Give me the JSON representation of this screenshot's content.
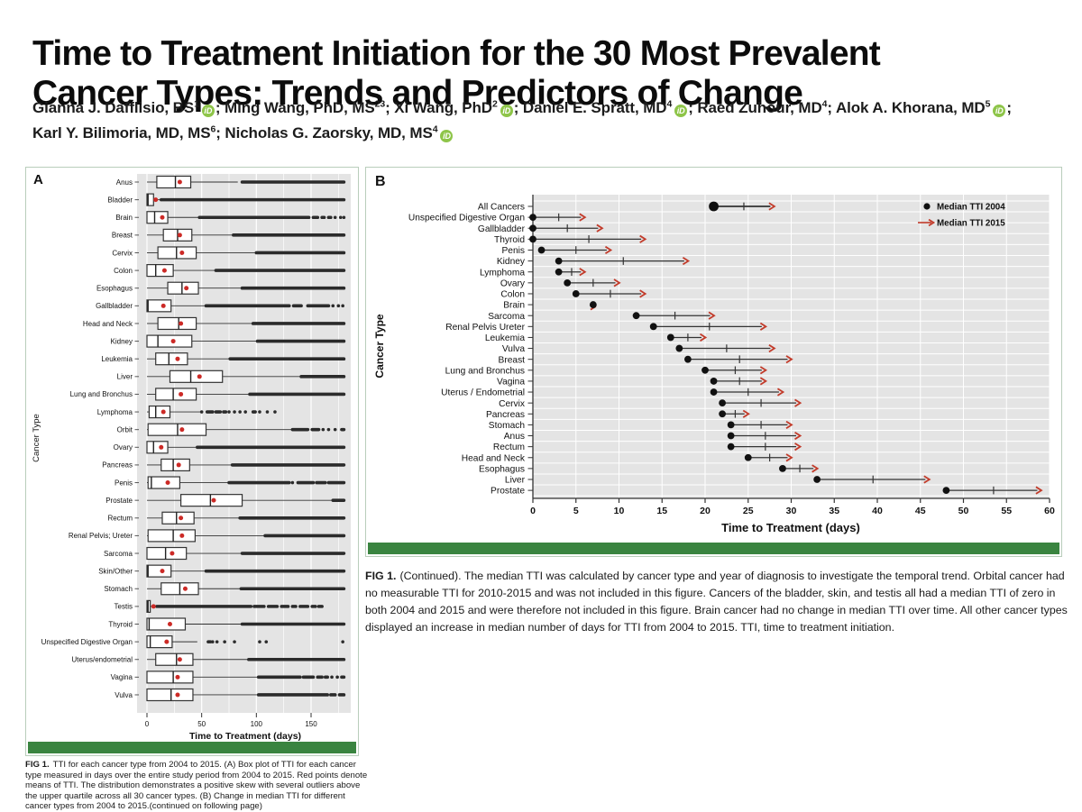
{
  "title": {
    "line1": "Time to Treatment Initiation for the 30 Most Prevalent",
    "line2": "Cancer Types: Trends and Predictors of Change"
  },
  "authors": {
    "list": [
      {
        "name": "Gianna J. Dafflisio, BS",
        "sup": "1",
        "orcid": true,
        "break_after": false
      },
      {
        "name": "Ming Wang, PhD, MS",
        "sup": "23",
        "orcid": false,
        "break_after": false
      },
      {
        "name": "Xi Wang, PhD",
        "sup": "2",
        "orcid": true,
        "break_after": false
      },
      {
        "name": "Daniel E. Spratt, MD",
        "sup": "4",
        "orcid": true,
        "break_after": false
      },
      {
        "name": "Raed Zuhour, MD",
        "sup": "4",
        "orcid": false,
        "break_after": false
      },
      {
        "name": "Alok A. Khorana, MD",
        "sup": "5",
        "orcid": true,
        "break_after": true
      },
      {
        "name": "Karl Y. Bilimoria, MD, MS",
        "sup": "6",
        "orcid": false,
        "break_after": false
      },
      {
        "name": "Nicholas G. Zaorsky, MD, MS",
        "sup": "4",
        "orcid": true,
        "break_after": false
      }
    ],
    "orcid_glyph": "iD",
    "separator": "; "
  },
  "colors": {
    "plot_bg": "#e4e4e4",
    "grid": "#ffffff",
    "box_stroke": "#333333",
    "outlier": "#2b2b2b",
    "mean_red": "#cc2a26",
    "arrow_red": "#c23b2a",
    "dot_black": "#111111",
    "green_bar": "#3a8440",
    "panel_border": "#b9cdbb",
    "orcid_green": "#8ec549"
  },
  "chart_data": [
    {
      "type": "boxplot",
      "panel_label": "A",
      "y_axis_title": "Cancer Type",
      "x_axis_title": "Time to Treatment (days)",
      "x_ticks": [
        0,
        50,
        100,
        150
      ],
      "xlim": [
        0,
        185
      ],
      "note": "values in days; out = outlier bands [start,end]",
      "rows": [
        {
          "name": "Anus",
          "q1": 9,
          "med": 26,
          "q3": 40,
          "hi": 83,
          "mean": 30,
          "out": [
            [
              87,
              180
            ]
          ]
        },
        {
          "name": "Bladder",
          "q1": 0,
          "med": 1,
          "q3": 6,
          "hi": 12,
          "mean": 8,
          "out": [
            [
              13,
              180
            ]
          ]
        },
        {
          "name": "Brain",
          "q1": 0,
          "med": 7,
          "q3": 19,
          "hi": 47,
          "mean": 14,
          "out": [
            [
              48,
              148
            ],
            [
              152,
              156
            ],
            [
              160,
              162
            ],
            [
              166,
              168
            ],
            [
              172,
              173
            ],
            [
              177,
              178
            ],
            [
              180,
              180
            ]
          ]
        },
        {
          "name": "Breast",
          "q1": 15,
          "med": 28,
          "q3": 41,
          "hi": 79,
          "mean": 30,
          "out": [
            [
              79,
              180
            ]
          ]
        },
        {
          "name": "Cervix",
          "q1": 10,
          "med": 27,
          "q3": 45,
          "hi": 99,
          "mean": 32,
          "out": [
            [
              100,
              180
            ]
          ]
        },
        {
          "name": "Colon",
          "q1": 0,
          "med": 8,
          "q3": 24,
          "hi": 62,
          "mean": 16,
          "out": [
            [
              63,
              180
            ]
          ]
        },
        {
          "name": "Esophagus",
          "q1": 19,
          "med": 32,
          "q3": 47,
          "hi": 87,
          "mean": 36,
          "out": [
            [
              87,
              180
            ]
          ]
        },
        {
          "name": "Gallbladder",
          "q1": 0,
          "med": 1,
          "q3": 22,
          "hi": 53,
          "mean": 15,
          "out": [
            [
              54,
              130
            ],
            [
              134,
              141
            ],
            [
              147,
              166
            ],
            [
              170,
              171
            ],
            [
              175,
              176
            ],
            [
              179,
              180
            ]
          ]
        },
        {
          "name": "Head and Neck",
          "q1": 10,
          "med": 29,
          "q3": 45,
          "hi": 96,
          "mean": 31,
          "out": [
            [
              97,
              180
            ]
          ]
        },
        {
          "name": "Kidney",
          "q1": 0,
          "med": 10,
          "q3": 41,
          "hi": 100,
          "mean": 24,
          "out": [
            [
              101,
              180
            ]
          ]
        },
        {
          "name": "Leukemia",
          "q1": 8,
          "med": 20,
          "q3": 37,
          "hi": 75,
          "mean": 28,
          "out": [
            [
              76,
              180
            ]
          ]
        },
        {
          "name": "Liver",
          "q1": 21,
          "med": 40,
          "q3": 69,
          "hi": 140,
          "mean": 48,
          "out": [
            [
              141,
              180
            ]
          ]
        },
        {
          "name": "Lung and Bronchus",
          "q1": 8,
          "med": 24,
          "q3": 45,
          "hi": 93,
          "mean": 31,
          "out": [
            [
              94,
              180
            ]
          ]
        },
        {
          "name": "Lymphoma",
          "q1": 2,
          "med": 8,
          "q3": 21,
          "hi": 49,
          "mean": 15,
          "out": [
            [
              50,
              51
            ],
            [
              55,
              60
            ],
            [
              63,
              67
            ],
            [
              70,
              72
            ],
            [
              75,
              76
            ],
            [
              80,
              81
            ],
            [
              85,
              86
            ],
            [
              90,
              91
            ],
            [
              97,
              99
            ],
            [
              103,
              104
            ],
            [
              110,
              111
            ],
            [
              117,
              118
            ]
          ]
        },
        {
          "name": "Orbit",
          "q1": 1,
          "med": 28,
          "q3": 54,
          "hi": 132,
          "mean": 32,
          "out": [
            [
              133,
              147
            ],
            [
              151,
              157
            ],
            [
              161,
              162
            ],
            [
              166,
              167
            ],
            [
              172,
              173
            ],
            [
              178,
              180
            ]
          ]
        },
        {
          "name": "Ovary",
          "q1": 0,
          "med": 6,
          "q3": 19,
          "hi": 45,
          "mean": 13,
          "out": [
            [
              46,
              180
            ]
          ]
        },
        {
          "name": "Pancreas",
          "q1": 13,
          "med": 24,
          "q3": 39,
          "hi": 77,
          "mean": 29,
          "out": [
            [
              78,
              180
            ]
          ]
        },
        {
          "name": "Penis",
          "q1": 1,
          "med": 4,
          "q3": 30,
          "hi": 74,
          "mean": 19,
          "out": [
            [
              75,
              130
            ],
            [
              133,
              134
            ],
            [
              138,
              152
            ],
            [
              155,
              163
            ],
            [
              166,
              180
            ]
          ]
        },
        {
          "name": "Prostate",
          "q1": 31,
          "med": 58,
          "q3": 87,
          "hi": 169,
          "mean": 61,
          "out": [
            [
              170,
              180
            ]
          ]
        },
        {
          "name": "Rectum",
          "q1": 14,
          "med": 27,
          "q3": 43,
          "hi": 84,
          "mean": 31,
          "out": [
            [
              85,
              180
            ]
          ]
        },
        {
          "name": "Renal Pelvis; Ureter",
          "q1": 1,
          "med": 24,
          "q3": 44,
          "hi": 107,
          "mean": 32,
          "out": [
            [
              108,
              180
            ]
          ]
        },
        {
          "name": "Sarcoma",
          "q1": 0,
          "med": 17,
          "q3": 36,
          "hi": 86,
          "mean": 23,
          "out": [
            [
              87,
              180
            ]
          ]
        },
        {
          "name": "Skin/Other",
          "q1": 0,
          "med": 1,
          "q3": 22,
          "hi": 53,
          "mean": 14,
          "out": [
            [
              54,
              180
            ]
          ]
        },
        {
          "name": "Stomach",
          "q1": 13,
          "med": 30,
          "q3": 47,
          "hi": 85,
          "mean": 35,
          "out": [
            [
              86,
              180
            ]
          ]
        },
        {
          "name": "Testis",
          "q1": 0,
          "med": 1,
          "q3": 3,
          "hi": 8,
          "mean": 6,
          "out": [
            [
              9,
              95
            ],
            [
              98,
              107
            ],
            [
              111,
              119
            ],
            [
              123,
              129
            ],
            [
              133,
              136
            ],
            [
              140,
              147
            ],
            [
              151,
              154
            ],
            [
              157,
              160
            ]
          ]
        },
        {
          "name": "Thyroid",
          "q1": 0,
          "med": 2,
          "q3": 35,
          "hi": 86,
          "mean": 21,
          "out": [
            [
              87,
              180
            ]
          ]
        },
        {
          "name": "Unspecified Digestive Organ",
          "q1": 0,
          "med": 3,
          "q3": 23,
          "hi": 46,
          "mean": 18,
          "out": [
            [
              56,
              58
            ],
            [
              60,
              61
            ],
            [
              64,
              65
            ],
            [
              71,
              72
            ],
            [
              80,
              81
            ],
            [
              103,
              104
            ],
            [
              109,
              110
            ],
            [
              179,
              180
            ]
          ]
        },
        {
          "name": "Uterus/endometrial",
          "q1": 8,
          "med": 27,
          "q3": 42,
          "hi": 92,
          "mean": 30,
          "out": [
            [
              93,
              180
            ]
          ]
        },
        {
          "name": "Vagina",
          "q1": 0,
          "med": 24,
          "q3": 42,
          "hi": 101,
          "mean": 28,
          "out": [
            [
              102,
              140
            ],
            [
              143,
              152
            ],
            [
              156,
              160
            ],
            [
              163,
              165
            ],
            [
              169,
              170
            ],
            [
              174,
              175
            ],
            [
              178,
              180
            ]
          ]
        },
        {
          "name": "Vulva",
          "q1": 0,
          "med": 22,
          "q3": 42,
          "hi": 101,
          "mean": 28,
          "out": [
            [
              102,
              165
            ],
            [
              168,
              172
            ],
            [
              176,
              180
            ]
          ]
        }
      ]
    },
    {
      "type": "dumbbell-arrow",
      "panel_label": "B",
      "y_axis_title": "Cancer Type",
      "x_axis_title": "Time to Treatment (days)",
      "x_ticks": [
        0,
        5,
        10,
        15,
        20,
        25,
        30,
        35,
        40,
        45,
        50,
        55,
        60
      ],
      "xlim": [
        0,
        60
      ],
      "legend": [
        {
          "marker": "dot",
          "label": "Median TTI 2004"
        },
        {
          "marker": "arrow",
          "label": "Median TTI 2015"
        }
      ],
      "rows": [
        {
          "name": "All Cancers",
          "y2004": 21,
          "y2015": 28,
          "big": true
        },
        {
          "name": "Unspecified Digestive Organ",
          "y2004": 0,
          "y2015": 6,
          "big": false
        },
        {
          "name": "Gallbladder",
          "y2004": 0,
          "y2015": 8,
          "big": false
        },
        {
          "name": "Thyroid",
          "y2004": 0,
          "y2015": 13,
          "big": false
        },
        {
          "name": "Penis",
          "y2004": 1,
          "y2015": 9,
          "big": false
        },
        {
          "name": "Kidney",
          "y2004": 3,
          "y2015": 18,
          "big": false
        },
        {
          "name": "Lymphoma",
          "y2004": 3,
          "y2015": 6,
          "big": false
        },
        {
          "name": "Ovary",
          "y2004": 4,
          "y2015": 10,
          "big": false
        },
        {
          "name": "Colon",
          "y2004": 5,
          "y2015": 13,
          "big": false
        },
        {
          "name": "Brain",
          "y2004": 7,
          "y2015": 7,
          "big": false
        },
        {
          "name": "Sarcoma",
          "y2004": 12,
          "y2015": 21,
          "big": false
        },
        {
          "name": "Renal Pelvis Ureter",
          "y2004": 14,
          "y2015": 27,
          "big": false
        },
        {
          "name": "Leukemia",
          "y2004": 16,
          "y2015": 20,
          "big": false
        },
        {
          "name": "Vulva",
          "y2004": 17,
          "y2015": 28,
          "big": false
        },
        {
          "name": "Breast",
          "y2004": 18,
          "y2015": 30,
          "big": false
        },
        {
          "name": "Lung and Bronchus",
          "y2004": 20,
          "y2015": 27,
          "big": false
        },
        {
          "name": "Vagina",
          "y2004": 21,
          "y2015": 27,
          "big": false
        },
        {
          "name": "Uterus / Endometrial",
          "y2004": 21,
          "y2015": 29,
          "big": false
        },
        {
          "name": "Cervix",
          "y2004": 22,
          "y2015": 31,
          "big": false
        },
        {
          "name": "Pancreas",
          "y2004": 22,
          "y2015": 25,
          "big": false
        },
        {
          "name": "Stomach",
          "y2004": 23,
          "y2015": 30,
          "big": false
        },
        {
          "name": "Anus",
          "y2004": 23,
          "y2015": 31,
          "big": false
        },
        {
          "name": "Rectum",
          "y2004": 23,
          "y2015": 31,
          "big": false
        },
        {
          "name": "Head and Neck",
          "y2004": 25,
          "y2015": 30,
          "big": false
        },
        {
          "name": "Esophagus",
          "y2004": 29,
          "y2015": 33,
          "big": false
        },
        {
          "name": "Liver",
          "y2004": 33,
          "y2015": 46,
          "big": false
        },
        {
          "name": "Prostate",
          "y2004": 48,
          "y2015": 59,
          "big": false
        }
      ]
    }
  ],
  "captionA": {
    "lead": "FIG 1.",
    "text": "TTI for each cancer type from 2004 to 2015. (A) Box plot of TTI for each cancer type measured in days over the entire study period from 2004 to 2015. Red points denote means of TTI. The distribution demonstrates a positive skew with several outliers above the upper quartile across all 30 cancer types. (B) Change in median TTI for different cancer types from 2004 to 2015.(continued on following page)"
  },
  "captionB": {
    "lead": "FIG 1.",
    "text": "(Continued).  The median TTI was calculated by cancer type and year of diagnosis to investigate the temporal trend. Orbital cancer had no measurable TTI for 2010-2015 and was not included in this figure. Cancers of the bladder, skin, and testis all had a median TTI of zero in both 2004 and 2015 and were therefore not included in this figure. Brain cancer had no change in median TTI over time. All other cancer types displayed an increase in median number of days for TTI from 2004 to 2015. TTI, time to treatment initiation."
  }
}
